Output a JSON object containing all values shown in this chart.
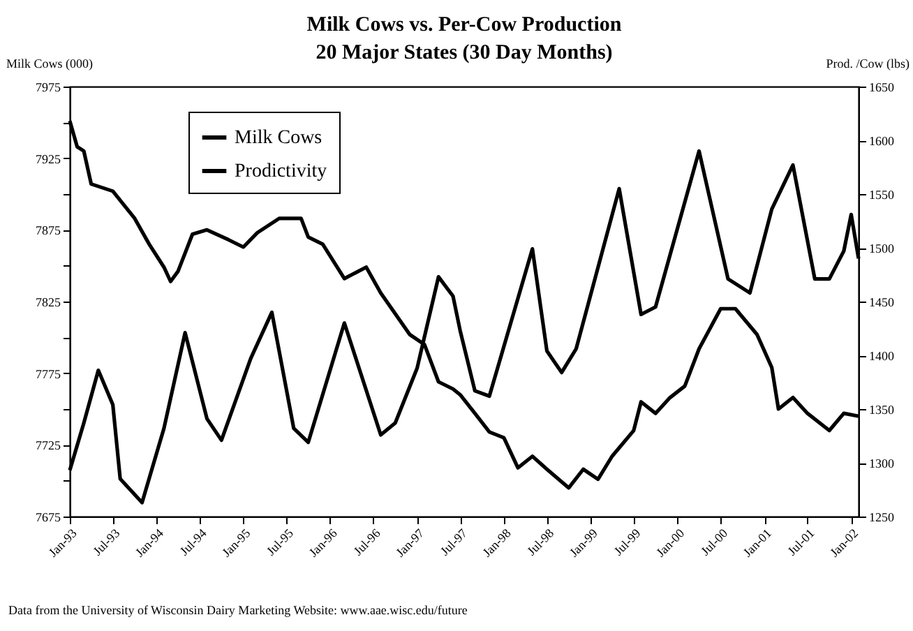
{
  "chart_data": {
    "type": "line",
    "title": "Milk Cows vs. Per-Cow Production",
    "subtitle": "20 Major States (30 Day Months)",
    "ylabel": "Milk Cows (000)",
    "y2label": "Prod. /Cow (lbs)",
    "annotations": [
      "Data from the University of Wisconsin Dairy Marketing Website: www.aae.wisc.edu/future"
    ],
    "xlim": [
      "1993-01",
      "2002-02"
    ],
    "xticks": [
      {
        "value": "1993-01",
        "label": "Jan-93"
      },
      {
        "value": "1993-07",
        "label": "Jul-93"
      },
      {
        "value": "1994-01",
        "label": "Jan-94"
      },
      {
        "value": "1994-07",
        "label": "Jul-94"
      },
      {
        "value": "1995-01",
        "label": "Jan-95"
      },
      {
        "value": "1995-07",
        "label": "Jul-95"
      },
      {
        "value": "1996-01",
        "label": "Jan-96"
      },
      {
        "value": "1996-07",
        "label": "Jul-96"
      },
      {
        "value": "1997-01",
        "label": "Jan-97"
      },
      {
        "value": "1997-07",
        "label": "Jul-97"
      },
      {
        "value": "1998-01",
        "label": "Jan-98"
      },
      {
        "value": "1998-07",
        "label": "Jul-98"
      },
      {
        "value": "1999-01",
        "label": "Jan-99"
      },
      {
        "value": "1999-07",
        "label": "Jul-99"
      },
      {
        "value": "2000-01",
        "label": "Jan-00"
      },
      {
        "value": "2000-07",
        "label": "Jul-00"
      },
      {
        "value": "2001-01",
        "label": "Jan-01"
      },
      {
        "value": "2001-07",
        "label": "Jul-01"
      },
      {
        "value": "2002-01",
        "label": "Jan-02"
      }
    ],
    "ylim": [
      7675,
      7975
    ],
    "yticks": [
      7675,
      {
        "value": 7700,
        "label": null
      },
      7725,
      {
        "value": 7750,
        "label": null
      },
      7775,
      {
        "value": 7800,
        "label": null
      },
      7825,
      {
        "value": 7850,
        "label": null
      },
      7875,
      {
        "value": 7900,
        "label": null
      },
      7925,
      {
        "value": 7950,
        "label": null
      },
      7975
    ],
    "y2lim": [
      1250,
      1650
    ],
    "y2ticks": [
      1250,
      1300,
      1350,
      1400,
      1450,
      1500,
      1550,
      1600,
      1650
    ],
    "legend": "top left",
    "grid": false,
    "marker": "none",
    "line_style": "solid",
    "series": [
      {
        "name": "Milk Cows",
        "color": "#000000",
        "x": [
          "1993-01",
          "1993-02",
          "1993-03",
          "1993-04",
          "1993-07",
          "1993-10",
          "1993-12",
          "1994-02",
          "1994-03",
          "1994-04",
          "1994-06",
          "1994-08",
          "1994-11",
          "1995-01",
          "1995-03",
          "1995-06",
          "1995-09",
          "1995-10",
          "1995-12",
          "1996-03",
          "1996-06",
          "1996-08",
          "1996-12",
          "1997-02",
          "1997-04",
          "1997-06",
          "1997-07",
          "1997-09",
          "1997-11",
          "1998-01",
          "1998-03",
          "1998-05",
          "1998-07",
          "1998-10",
          "1998-12",
          "1999-02",
          "1999-04",
          "1999-07",
          "1999-08",
          "1999-10",
          "1999-12",
          "2000-02",
          "2000-04",
          "2000-07",
          "2000-09",
          "2000-12",
          "2001-02",
          "2001-03",
          "2001-05",
          "2001-07",
          "2001-10",
          "2001-12",
          "2002-02"
        ],
        "values": [
          7951,
          7933,
          7930,
          7907,
          7902,
          7883,
          7865,
          7849,
          7839,
          7846,
          7872,
          7875,
          7868,
          7863,
          7873,
          7883,
          7883,
          7870,
          7865,
          7841,
          7849,
          7831,
          7802,
          7795,
          7769,
          7764,
          7760,
          7747,
          7734,
          7730,
          7709,
          7717,
          7708,
          7695,
          7708,
          7701,
          7717,
          7735,
          7755,
          7747,
          7758,
          7766,
          7792,
          7820,
          7820,
          7802,
          7779,
          7750,
          7758,
          7747,
          7735,
          7747,
          7745
        ]
      },
      {
        "name": "Prodictivity",
        "color": "#000000",
        "axis": "y2",
        "x": [
          "1993-01",
          "1993-03",
          "1993-05",
          "1993-07",
          "1993-08",
          "1993-11",
          "1994-02",
          "1994-05",
          "1994-08",
          "1994-10",
          "1995-02",
          "1995-05",
          "1995-08",
          "1995-10",
          "1996-03",
          "1996-08",
          "1996-10",
          "1997-01",
          "1997-04",
          "1997-06",
          "1997-07",
          "1997-09",
          "1997-11",
          "1998-05",
          "1998-07",
          "1998-09",
          "1998-11",
          "1999-05",
          "1999-08",
          "1999-10",
          "2000-04",
          "2000-08",
          "2000-11",
          "2001-02",
          "2001-05",
          "2001-08",
          "2001-10",
          "2001-12",
          "2002-01",
          "2002-02"
        ],
        "values": [
          1293,
          1337,
          1386,
          1354,
          1285,
          1263,
          1332,
          1421,
          1341,
          1321,
          1397,
          1440,
          1332,
          1319,
          1430,
          1326,
          1337,
          1388,
          1473,
          1455,
          1423,
          1367,
          1362,
          1499,
          1404,
          1384,
          1406,
          1555,
          1438,
          1445,
          1590,
          1471,
          1458,
          1536,
          1577,
          1471,
          1471,
          1497,
          1531,
          1490
        ]
      }
    ]
  }
}
